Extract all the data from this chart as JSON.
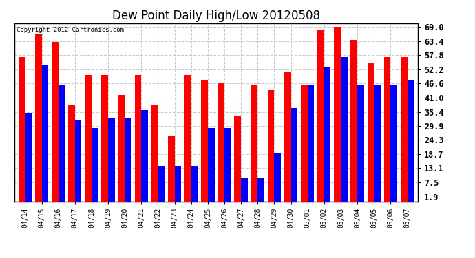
{
  "title": "Dew Point Daily High/Low 20120508",
  "copyright": "Copyright 2012 Cartronics.com",
  "categories": [
    "04/14",
    "04/15",
    "04/16",
    "04/17",
    "04/18",
    "04/19",
    "04/20",
    "04/21",
    "04/22",
    "04/23",
    "04/24",
    "04/25",
    "04/26",
    "04/27",
    "04/28",
    "04/29",
    "04/30",
    "05/01",
    "05/02",
    "05/03",
    "05/04",
    "05/05",
    "05/06",
    "05/07"
  ],
  "highs": [
    57.0,
    66.0,
    63.0,
    38.0,
    50.0,
    50.0,
    42.0,
    50.0,
    38.0,
    26.0,
    50.0,
    48.0,
    47.0,
    34.0,
    46.0,
    44.0,
    51.0,
    46.0,
    68.0,
    69.0,
    64.0,
    55.0,
    57.0,
    57.0
  ],
  "lows": [
    35.0,
    54.0,
    46.0,
    32.0,
    29.0,
    33.0,
    33.0,
    36.0,
    14.0,
    14.0,
    14.0,
    29.0,
    29.0,
    9.0,
    9.0,
    19.0,
    37.0,
    46.0,
    53.0,
    57.0,
    46.0,
    46.0,
    46.0,
    48.0
  ],
  "high_color": "#ff0000",
  "low_color": "#0000ff",
  "bg_color": "#ffffff",
  "grid_color": "#cccccc",
  "yticks": [
    1.9,
    7.5,
    13.1,
    18.7,
    24.3,
    29.9,
    35.4,
    41.0,
    46.6,
    52.2,
    57.8,
    63.4,
    69.0
  ],
  "ymin": 0.0,
  "ymax": 70.5,
  "bar_width": 0.4,
  "figwidth": 6.9,
  "figheight": 3.75,
  "dpi": 100
}
